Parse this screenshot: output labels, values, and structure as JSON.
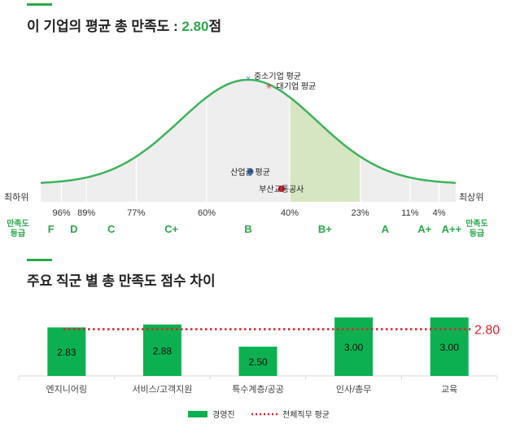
{
  "section1": {
    "title_prefix": "이 기업의 평균 총 만족도 : ",
    "score": "2.80",
    "title_suffix": "점"
  },
  "curve": {
    "left_label": "최하위",
    "right_label": "최상위",
    "grade_axis_label": "만족도\n등급",
    "grade_axis_label_right": "만족도\n등급",
    "percent_ticks": [
      {
        "label": "96%",
        "at": 0.05
      },
      {
        "label": "89%",
        "at": 0.11
      },
      {
        "label": "77%",
        "at": 0.23
      },
      {
        "label": "60%",
        "at": 0.4
      },
      {
        "label": "40%",
        "at": 0.6
      },
      {
        "label": "23%",
        "at": 0.77
      },
      {
        "label": "11%",
        "at": 0.89
      },
      {
        "label": "4%",
        "at": 0.96
      }
    ],
    "grades": [
      "F",
      "D",
      "C",
      "C+",
      "B",
      "B+",
      "A",
      "A+",
      "A++"
    ],
    "markers": [
      {
        "label": "중소기업 평균",
        "symbol": "×",
        "color": "#3c8fd6",
        "percentile": 0.5
      },
      {
        "label": "대기업 평균",
        "symbol": "✳",
        "color": "#e03b3b",
        "percentile": 0.55
      },
      {
        "label": "산업군 평균",
        "symbol": "●",
        "color": "#3a6db5",
        "percentile": 0.505
      },
      {
        "label": "부산교통공사",
        "symbol": "●",
        "color": "#e0202a",
        "percentile": 0.58
      }
    ],
    "highlight_range": [
      0.6,
      0.77
    ],
    "colors": {
      "curve": "#3db35a",
      "fill": "#eeeeee",
      "highlight": "#d6e6c2"
    }
  },
  "section2": {
    "title": "주요 직군 별 총 만족도 점수 차이"
  },
  "chart_data": {
    "type": "bar",
    "categories": [
      "엔지니어링",
      "서비스/고객지원",
      "특수계층/공공",
      "인사/총무",
      "교육"
    ],
    "series": [
      {
        "name": "경영진",
        "values": [
          2.83,
          2.88,
          2.5,
          3.0,
          3.0
        ],
        "color": "#0db050"
      }
    ],
    "reference_line": {
      "name": "전체직무 평균",
      "value": 2.8,
      "label": "2.80",
      "color": "#e0202a",
      "style": "dotted"
    },
    "value_labels": [
      "2.83",
      "2.88",
      "2.50",
      "3.00",
      "3.00"
    ],
    "legend": [
      "경영진",
      "전체직무 평균"
    ],
    "legend_position": "bottom",
    "ylim": [
      2.0,
      3.1
    ],
    "grid": false
  }
}
